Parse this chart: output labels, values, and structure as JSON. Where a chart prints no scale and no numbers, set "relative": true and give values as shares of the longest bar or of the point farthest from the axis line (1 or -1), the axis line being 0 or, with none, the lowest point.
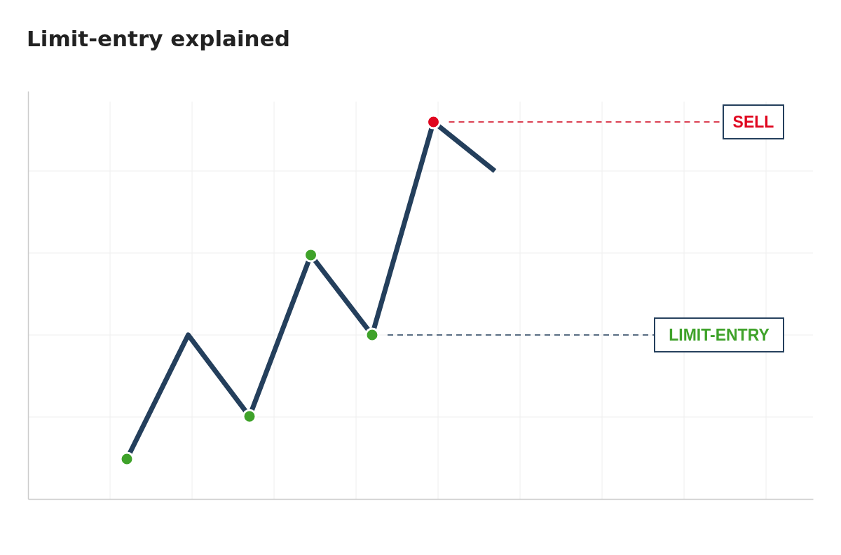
{
  "chart_data": {
    "type": "line",
    "title": "Limit-entry explained",
    "relative": true,
    "categories": [
      null,
      null,
      null,
      null,
      null,
      null,
      null
    ],
    "series": [
      {
        "color": "#243f5c",
        "marker": "circle",
        "colors": [
          "#3fa22a",
          null,
          "#3fa22a",
          "#3fa22a",
          "#3fa22a",
          "#e0061f",
          null
        ],
        "values": [
          0.106,
          0.435,
          0.219,
          0.647,
          0.435,
          1,
          0.87
        ]
      }
    ],
    "ref_lines": [
      {
        "axis": "y",
        "value": 1,
        "label": "SELL",
        "color": "#d0021b",
        "line_style": "dashed"
      },
      {
        "axis": "y",
        "value": 0.435,
        "label": "LIMIT-ENTRY",
        "color": "#243f5c",
        "line_style": "dashed"
      }
    ],
    "grid": true
  }
}
